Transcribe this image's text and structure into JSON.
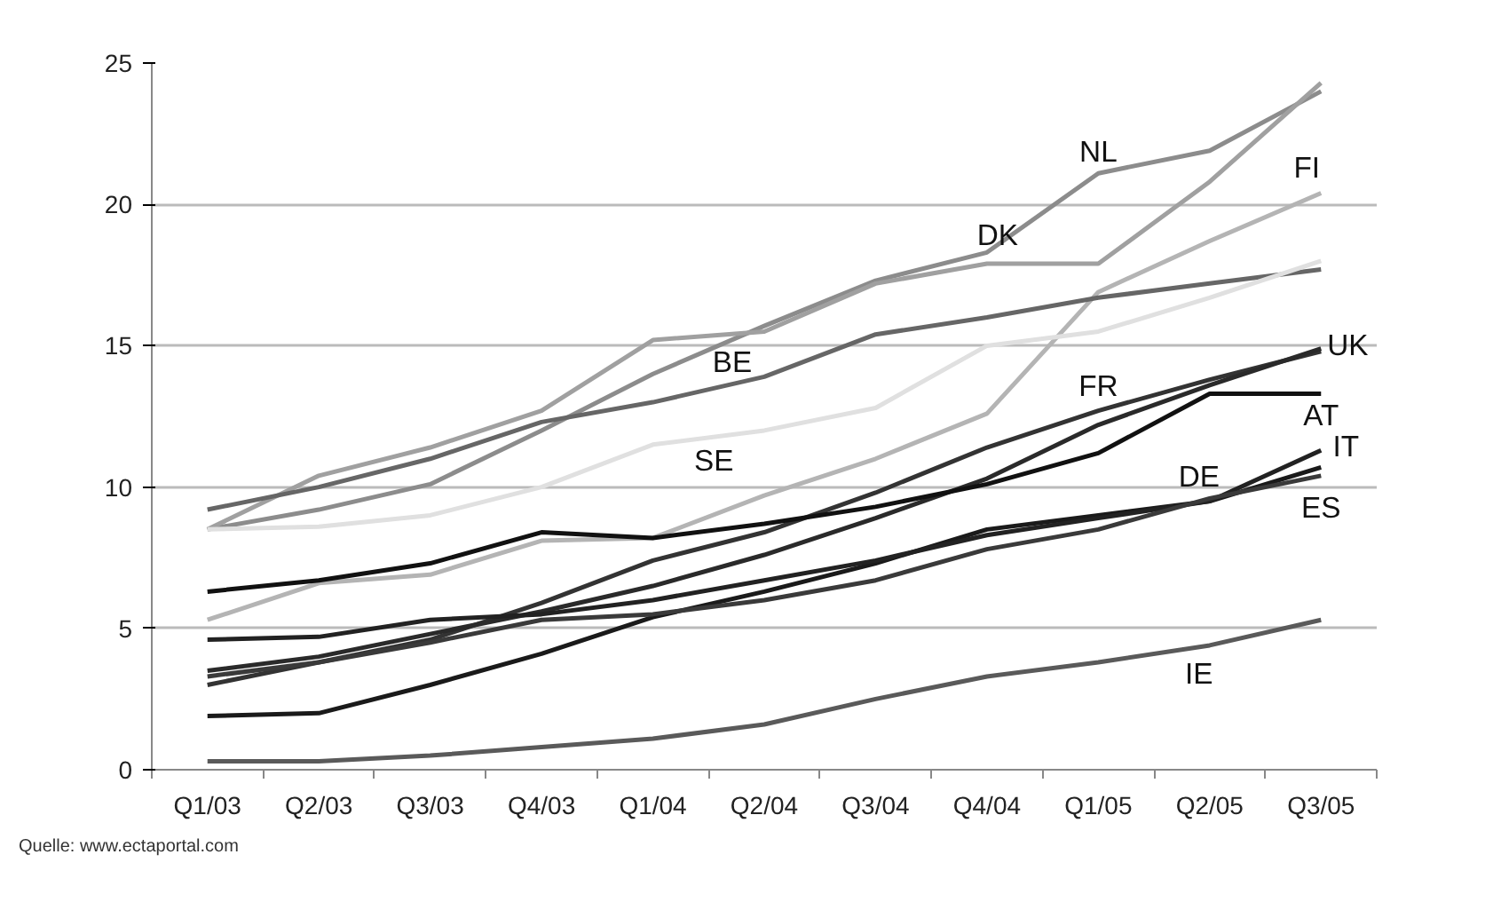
{
  "chart_data": {
    "type": "line",
    "categories": [
      "Q1/03",
      "Q2/03",
      "Q3/03",
      "Q4/03",
      "Q1/04",
      "Q2/04",
      "Q3/04",
      "Q4/04",
      "Q1/05",
      "Q2/05",
      "Q3/05"
    ],
    "ylim": [
      0,
      25
    ],
    "yticks": [
      0,
      5,
      10,
      15,
      20,
      25
    ],
    "grid": "y",
    "marker": "none",
    "line_style": "solid",
    "series": [
      {
        "name": "NL",
        "color": "#8c8c8c",
        "values": [
          8.5,
          9.2,
          10.1,
          12.0,
          14.0,
          15.7,
          17.3,
          18.3,
          21.1,
          21.9,
          24.0
        ]
      },
      {
        "name": "DK",
        "color": "#a0a0a0",
        "values": [
          8.5,
          10.4,
          11.4,
          12.7,
          15.2,
          15.5,
          17.2,
          17.9,
          17.9,
          20.8,
          24.3
        ]
      },
      {
        "name": "FI",
        "color": "#b4b4b4",
        "values": [
          5.3,
          6.6,
          6.9,
          8.1,
          8.2,
          9.7,
          11.0,
          12.6,
          16.9,
          18.7,
          20.4
        ]
      },
      {
        "name": "BE",
        "color": "#666666",
        "values": [
          9.2,
          10.0,
          11.0,
          12.3,
          13.0,
          13.9,
          15.4,
          16.0,
          16.7,
          17.2,
          17.7
        ]
      },
      {
        "name": "SE",
        "color": "#e0e0e0",
        "values": [
          8.5,
          8.6,
          9.0,
          10.0,
          11.5,
          12.0,
          12.8,
          15.0,
          15.5,
          16.7,
          18.0
        ]
      },
      {
        "name": "FR",
        "color": "#333333",
        "values": [
          3.0,
          3.8,
          4.6,
          5.9,
          7.4,
          8.4,
          9.8,
          11.4,
          12.7,
          13.8,
          14.8
        ]
      },
      {
        "name": "UK",
        "color": "#2a2a2a",
        "values": [
          3.5,
          4.0,
          4.8,
          5.6,
          6.5,
          7.6,
          8.9,
          10.3,
          12.2,
          13.6,
          14.9
        ]
      },
      {
        "name": "AT",
        "color": "#111111",
        "values": [
          6.3,
          6.7,
          7.3,
          8.4,
          8.2,
          8.7,
          9.3,
          10.1,
          11.2,
          13.3,
          13.3
        ]
      },
      {
        "name": "DE",
        "color": "#1a1a1a",
        "values": [
          1.9,
          2.0,
          3.0,
          4.1,
          5.4,
          6.3,
          7.3,
          8.5,
          9.0,
          9.5,
          10.7
        ]
      },
      {
        "name": "IT",
        "color": "#222222",
        "values": [
          4.6,
          4.7,
          5.3,
          5.5,
          6.0,
          6.7,
          7.4,
          8.3,
          8.9,
          9.5,
          11.3
        ]
      },
      {
        "name": "ES",
        "color": "#3a3a3a",
        "values": [
          3.3,
          3.8,
          4.5,
          5.3,
          5.5,
          6.0,
          6.7,
          7.8,
          8.5,
          9.6,
          10.4
        ]
      },
      {
        "name": "IE",
        "color": "#5a5a5a",
        "values": [
          0.3,
          0.3,
          0.5,
          0.8,
          1.1,
          1.6,
          2.5,
          3.3,
          3.8,
          4.4,
          5.3
        ]
      }
    ],
    "annotations": [
      "Quelle: www.ectaportal.com"
    ]
  }
}
